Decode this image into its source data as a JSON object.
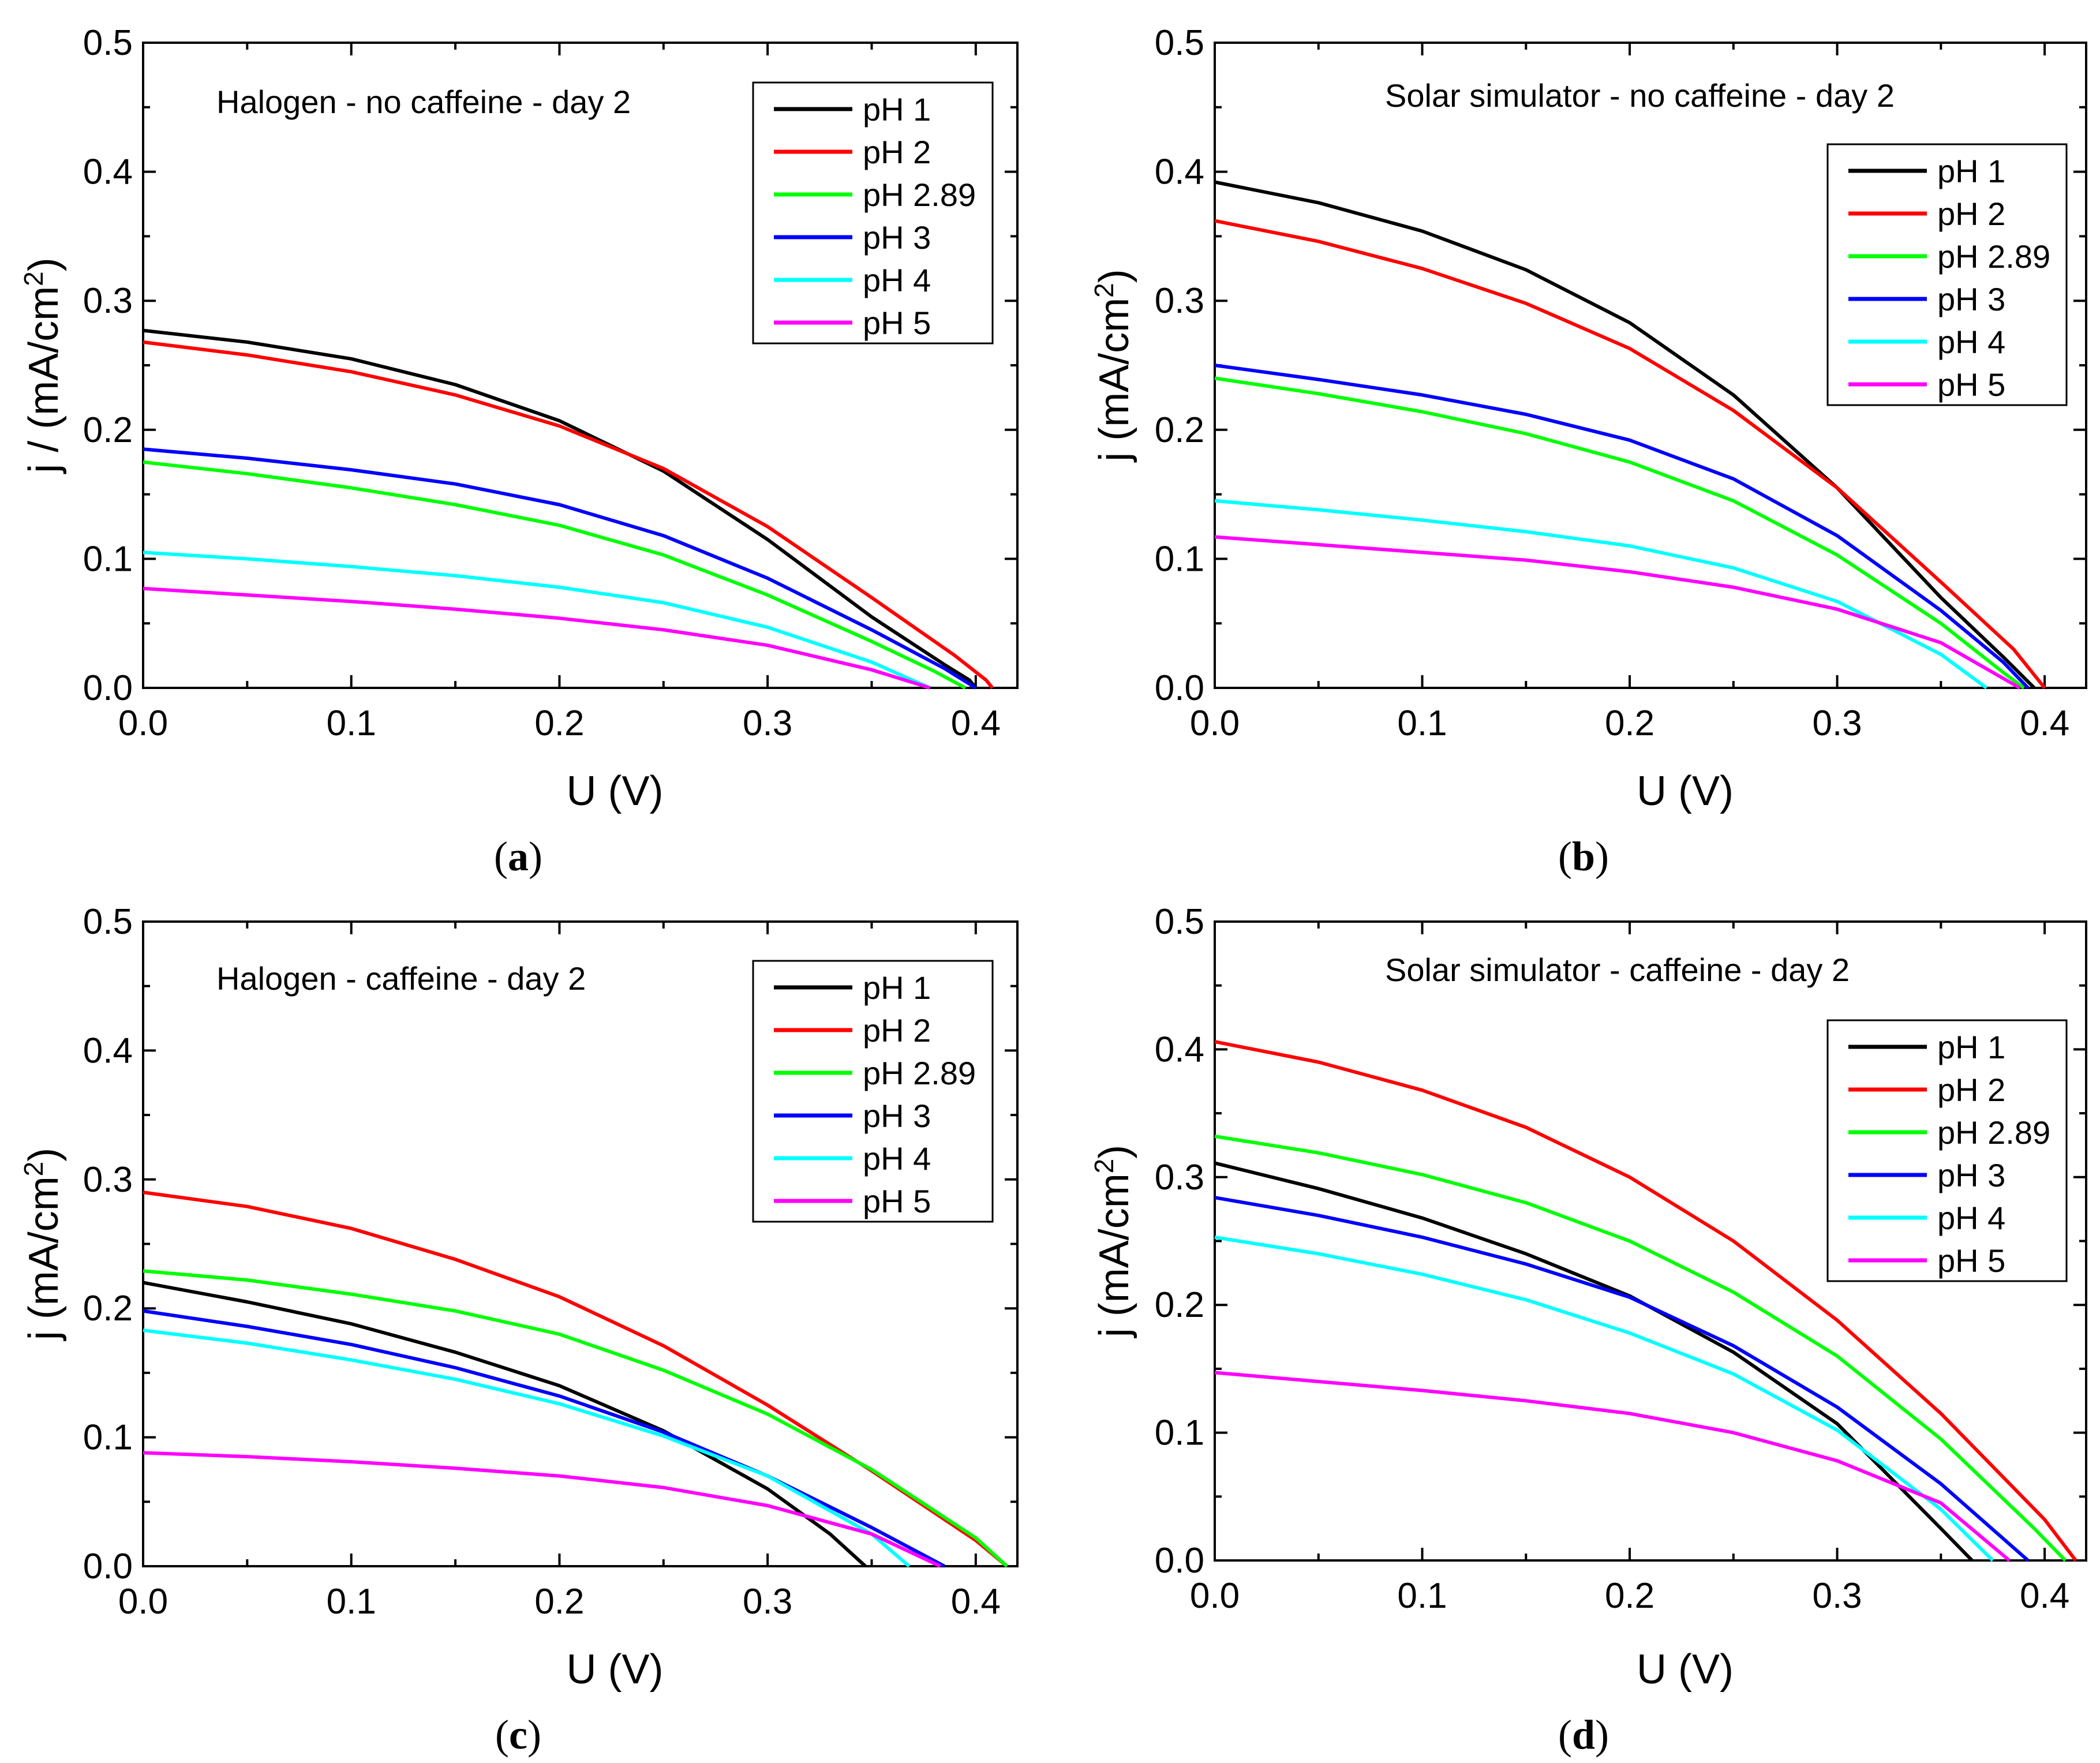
{
  "figure": {
    "panels_caption": [
      "(a)",
      "(b)",
      "(c)",
      "(d)"
    ]
  },
  "chart_data": [
    {
      "type": "line",
      "panel": "a",
      "label_open": "(",
      "label_letter": "a",
      "label_close": ")",
      "title": "Halogen - no caffeine - day 2",
      "xlabel": "U (V)",
      "ylabel": "j / (mA/cm²)",
      "ylabel_parts": {
        "pre": "j / (mA/cm",
        "sup": "2",
        "post": ")"
      },
      "xlim": [
        0,
        0.42
      ],
      "ylim": [
        0,
        0.5
      ],
      "xticks": [
        "0.0",
        "0.1",
        "0.2",
        "0.3",
        "0.4"
      ],
      "yticks": [
        "0.0",
        "0.1",
        "0.2",
        "0.3",
        "0.4",
        "0.5"
      ],
      "legend_position": "top-right",
      "series": [
        {
          "name": "pH 1",
          "color": "#000000",
          "x": [
            0,
            0.05,
            0.1,
            0.15,
            0.2,
            0.25,
            0.3,
            0.35,
            0.385,
            0.397,
            0.4
          ],
          "y": [
            0.277,
            0.268,
            0.255,
            0.235,
            0.207,
            0.168,
            0.115,
            0.055,
            0.018,
            0.006,
            0
          ]
        },
        {
          "name": "pH 2",
          "color": "#ff0000",
          "x": [
            0,
            0.05,
            0.1,
            0.15,
            0.2,
            0.25,
            0.3,
            0.35,
            0.39,
            0.405,
            0.408
          ],
          "y": [
            0.268,
            0.258,
            0.245,
            0.227,
            0.203,
            0.17,
            0.125,
            0.07,
            0.025,
            0.006,
            0
          ]
        },
        {
          "name": "pH 2.89",
          "color": "#00ff00",
          "x": [
            0,
            0.05,
            0.1,
            0.15,
            0.2,
            0.25,
            0.3,
            0.35,
            0.38,
            0.395
          ],
          "y": [
            0.175,
            0.166,
            0.155,
            0.142,
            0.126,
            0.103,
            0.072,
            0.036,
            0.013,
            0
          ]
        },
        {
          "name": "pH 3",
          "color": "#0000ff",
          "x": [
            0,
            0.05,
            0.1,
            0.15,
            0.2,
            0.25,
            0.3,
            0.35,
            0.385,
            0.4
          ],
          "y": [
            0.185,
            0.178,
            0.169,
            0.158,
            0.142,
            0.118,
            0.085,
            0.045,
            0.015,
            0
          ]
        },
        {
          "name": "pH 4",
          "color": "#00ffff",
          "x": [
            0,
            0.05,
            0.1,
            0.15,
            0.2,
            0.25,
            0.3,
            0.35,
            0.378
          ],
          "y": [
            0.105,
            0.1,
            0.094,
            0.087,
            0.078,
            0.066,
            0.047,
            0.02,
            0
          ]
        },
        {
          "name": "pH 5",
          "color": "#ff00ff",
          "x": [
            0,
            0.05,
            0.1,
            0.15,
            0.2,
            0.25,
            0.3,
            0.35,
            0.378
          ],
          "y": [
            0.077,
            0.072,
            0.067,
            0.061,
            0.054,
            0.045,
            0.033,
            0.014,
            0
          ]
        }
      ]
    },
    {
      "type": "line",
      "panel": "b",
      "label_open": "(",
      "label_letter": "b",
      "label_close": ")",
      "title": "Solar simulator - no caffeine - day 2",
      "xlabel": "U (V)",
      "ylabel": "j (mA/cm²)",
      "ylabel_parts": {
        "pre": "j (mA/cm",
        "sup": "2",
        "post": ")"
      },
      "xlim": [
        0,
        0.42
      ],
      "ylim": [
        0,
        0.5
      ],
      "xticks": [
        "0.0",
        "0.1",
        "0.2",
        "0.3",
        "0.4"
      ],
      "yticks": [
        "0.0",
        "0.1",
        "0.2",
        "0.3",
        "0.4",
        "0.5"
      ],
      "legend_position": "top-right",
      "series": [
        {
          "name": "pH 1",
          "color": "#000000",
          "x": [
            0,
            0.05,
            0.1,
            0.15,
            0.2,
            0.25,
            0.3,
            0.35,
            0.38,
            0.395
          ],
          "y": [
            0.392,
            0.376,
            0.354,
            0.324,
            0.283,
            0.227,
            0.155,
            0.07,
            0.024,
            0
          ]
        },
        {
          "name": "pH 2",
          "color": "#ff0000",
          "x": [
            0,
            0.05,
            0.1,
            0.15,
            0.2,
            0.25,
            0.3,
            0.35,
            0.385,
            0.4
          ],
          "y": [
            0.362,
            0.346,
            0.325,
            0.298,
            0.263,
            0.215,
            0.155,
            0.082,
            0.03,
            0
          ]
        },
        {
          "name": "pH 2.89",
          "color": "#00ff00",
          "x": [
            0,
            0.05,
            0.1,
            0.15,
            0.2,
            0.25,
            0.3,
            0.35,
            0.38,
            0.39
          ],
          "y": [
            0.24,
            0.228,
            0.214,
            0.197,
            0.175,
            0.145,
            0.103,
            0.05,
            0.012,
            0
          ]
        },
        {
          "name": "pH 3",
          "color": "#0000ff",
          "x": [
            0,
            0.05,
            0.1,
            0.15,
            0.2,
            0.25,
            0.3,
            0.35,
            0.38,
            0.392
          ],
          "y": [
            0.25,
            0.239,
            0.227,
            0.212,
            0.192,
            0.162,
            0.118,
            0.06,
            0.02,
            0
          ]
        },
        {
          "name": "pH 4",
          "color": "#00ffff",
          "x": [
            0,
            0.05,
            0.1,
            0.15,
            0.2,
            0.25,
            0.3,
            0.35,
            0.372
          ],
          "y": [
            0.145,
            0.138,
            0.13,
            0.121,
            0.11,
            0.093,
            0.067,
            0.026,
            0
          ]
        },
        {
          "name": "pH 5",
          "color": "#ff00ff",
          "x": [
            0,
            0.05,
            0.1,
            0.15,
            0.2,
            0.25,
            0.3,
            0.35,
            0.388
          ],
          "y": [
            0.117,
            0.111,
            0.105,
            0.099,
            0.09,
            0.078,
            0.061,
            0.035,
            0
          ]
        }
      ]
    },
    {
      "type": "line",
      "panel": "c",
      "label_open": "(",
      "label_letter": "c",
      "label_close": ")",
      "title": "Halogen - caffeine - day 2",
      "xlabel": "U (V)",
      "ylabel": "j (mA/cm²)",
      "ylabel_parts": {
        "pre": "j (mA/cm",
        "sup": "2",
        "post": ")"
      },
      "xlim": [
        0,
        0.42
      ],
      "ylim": [
        0,
        0.5
      ],
      "xticks": [
        "0.0",
        "0.1",
        "0.2",
        "0.3",
        "0.4"
      ],
      "yticks": [
        "0.0",
        "0.1",
        "0.2",
        "0.3",
        "0.4",
        "0.5"
      ],
      "legend_position": "top-right",
      "series": [
        {
          "name": "pH 1",
          "color": "#000000",
          "x": [
            0,
            0.05,
            0.1,
            0.15,
            0.2,
            0.25,
            0.3,
            0.33,
            0.347
          ],
          "y": [
            0.22,
            0.205,
            0.188,
            0.166,
            0.14,
            0.105,
            0.06,
            0.025,
            0
          ]
        },
        {
          "name": "pH 2",
          "color": "#ff0000",
          "x": [
            0,
            0.05,
            0.1,
            0.15,
            0.2,
            0.25,
            0.3,
            0.35,
            0.4,
            0.415
          ],
          "y": [
            0.29,
            0.279,
            0.262,
            0.238,
            0.209,
            0.171,
            0.125,
            0.074,
            0.02,
            0
          ]
        },
        {
          "name": "pH 2.89",
          "color": "#00ff00",
          "x": [
            0,
            0.05,
            0.1,
            0.15,
            0.2,
            0.25,
            0.3,
            0.35,
            0.4,
            0.415
          ],
          "y": [
            0.229,
            0.222,
            0.211,
            0.198,
            0.18,
            0.152,
            0.118,
            0.075,
            0.022,
            0
          ]
        },
        {
          "name": "pH 3",
          "color": "#0000ff",
          "x": [
            0,
            0.05,
            0.1,
            0.15,
            0.2,
            0.25,
            0.3,
            0.35,
            0.385
          ],
          "y": [
            0.198,
            0.186,
            0.172,
            0.154,
            0.132,
            0.104,
            0.07,
            0.03,
            0
          ]
        },
        {
          "name": "pH 4",
          "color": "#00ffff",
          "x": [
            0,
            0.05,
            0.1,
            0.15,
            0.2,
            0.25,
            0.3,
            0.35,
            0.368
          ],
          "y": [
            0.183,
            0.173,
            0.16,
            0.145,
            0.126,
            0.101,
            0.07,
            0.025,
            0
          ]
        },
        {
          "name": "pH 5",
          "color": "#ff00ff",
          "x": [
            0,
            0.05,
            0.1,
            0.15,
            0.2,
            0.25,
            0.3,
            0.35,
            0.383
          ],
          "y": [
            0.088,
            0.085,
            0.081,
            0.076,
            0.07,
            0.061,
            0.047,
            0.025,
            0
          ]
        }
      ]
    },
    {
      "type": "line",
      "panel": "d",
      "label_open": "(",
      "label_letter": "d",
      "label_close": ")",
      "title": "Solar simulator - caffeine - day 2",
      "xlabel": "U (V)",
      "ylabel": "j (mA/cm²)",
      "ylabel_parts": {
        "pre": "j (mA/cm",
        "sup": "2",
        "post": ")"
      },
      "xlim": [
        0,
        0.42
      ],
      "ylim": [
        0,
        0.5
      ],
      "xticks": [
        "0.0",
        "0.1",
        "0.2",
        "0.3",
        "0.4"
      ],
      "yticks": [
        "0.0",
        "0.1",
        "0.2",
        "0.3",
        "0.4",
        "0.5"
      ],
      "legend_position": "top-right",
      "series": [
        {
          "name": "pH 1",
          "color": "#000000",
          "x": [
            0,
            0.05,
            0.1,
            0.15,
            0.2,
            0.25,
            0.3,
            0.35,
            0.365
          ],
          "y": [
            0.311,
            0.291,
            0.268,
            0.24,
            0.207,
            0.163,
            0.107,
            0.025,
            0
          ]
        },
        {
          "name": "pH 2",
          "color": "#ff0000",
          "x": [
            0,
            0.05,
            0.1,
            0.15,
            0.2,
            0.25,
            0.3,
            0.35,
            0.4,
            0.415
          ],
          "y": [
            0.406,
            0.39,
            0.368,
            0.339,
            0.3,
            0.25,
            0.188,
            0.115,
            0.032,
            0
          ]
        },
        {
          "name": "pH 2.89",
          "color": "#00ff00",
          "x": [
            0,
            0.05,
            0.1,
            0.15,
            0.2,
            0.25,
            0.3,
            0.35,
            0.395,
            0.41
          ],
          "y": [
            0.332,
            0.319,
            0.302,
            0.28,
            0.25,
            0.21,
            0.16,
            0.095,
            0.025,
            0
          ]
        },
        {
          "name": "pH 3",
          "color": "#0000ff",
          "x": [
            0,
            0.05,
            0.1,
            0.15,
            0.2,
            0.25,
            0.3,
            0.35,
            0.392
          ],
          "y": [
            0.284,
            0.27,
            0.253,
            0.232,
            0.206,
            0.168,
            0.12,
            0.06,
            0
          ]
        },
        {
          "name": "pH 4",
          "color": "#00ffff",
          "x": [
            0,
            0.05,
            0.1,
            0.15,
            0.2,
            0.25,
            0.3,
            0.35,
            0.375
          ],
          "y": [
            0.253,
            0.24,
            0.224,
            0.204,
            0.178,
            0.146,
            0.102,
            0.04,
            0
          ]
        },
        {
          "name": "pH 5",
          "color": "#ff00ff",
          "x": [
            0,
            0.05,
            0.1,
            0.15,
            0.2,
            0.25,
            0.3,
            0.35,
            0.383
          ],
          "y": [
            0.147,
            0.14,
            0.133,
            0.125,
            0.115,
            0.1,
            0.078,
            0.045,
            0
          ]
        }
      ]
    }
  ]
}
